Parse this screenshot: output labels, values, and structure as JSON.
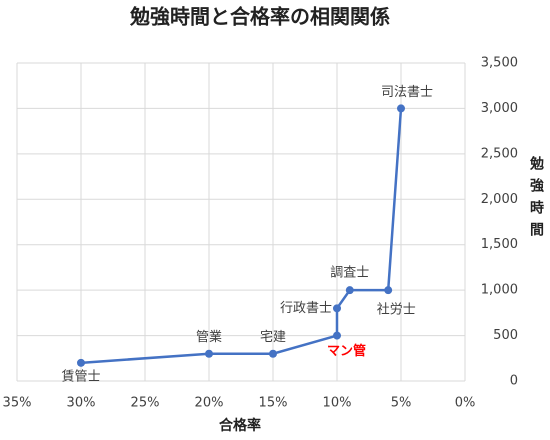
{
  "chart_data": {
    "type": "line",
    "title": "勉強時間と合格率の相関関係",
    "x_label": "合格率",
    "y_label": "勉強時間",
    "x": [
      30,
      20,
      15,
      10,
      10,
      9,
      6,
      5
    ],
    "values": [
      200,
      300,
      300,
      500,
      800,
      1000,
      1000,
      3000
    ],
    "point_labels": [
      "賃管士",
      "管業",
      "宅建",
      "マン管",
      "行政書士",
      "調査士",
      "社労士",
      "司法書士"
    ],
    "label_colors": [
      "#404040",
      "#404040",
      "#404040",
      "#ff0000",
      "#404040",
      "#404040",
      "#404040",
      "#404040"
    ],
    "color": "#4472c4",
    "xlim": [
      35,
      0
    ],
    "xticks": [
      {
        "value": 35,
        "label": "35%"
      },
      {
        "value": 30,
        "label": "30%"
      },
      {
        "value": 25,
        "label": "25%"
      },
      {
        "value": 20,
        "label": "20%"
      },
      {
        "value": 15,
        "label": "15%"
      },
      {
        "value": 10,
        "label": "10%"
      },
      {
        "value": 5,
        "label": "5%"
      },
      {
        "value": 0,
        "label": "0%"
      }
    ],
    "ylim": [
      0,
      3500
    ],
    "yticks": [
      0,
      500,
      {
        "value": 1000,
        "label": "1,000"
      },
      {
        "value": 1500,
        "label": "1,500"
      },
      {
        "value": 2000,
        "label": "2,000"
      },
      {
        "value": 2500,
        "label": "2,500"
      },
      {
        "value": 3000,
        "label": "3,000"
      },
      {
        "value": 3500,
        "label": "3,500"
      }
    ],
    "grid": true
  }
}
